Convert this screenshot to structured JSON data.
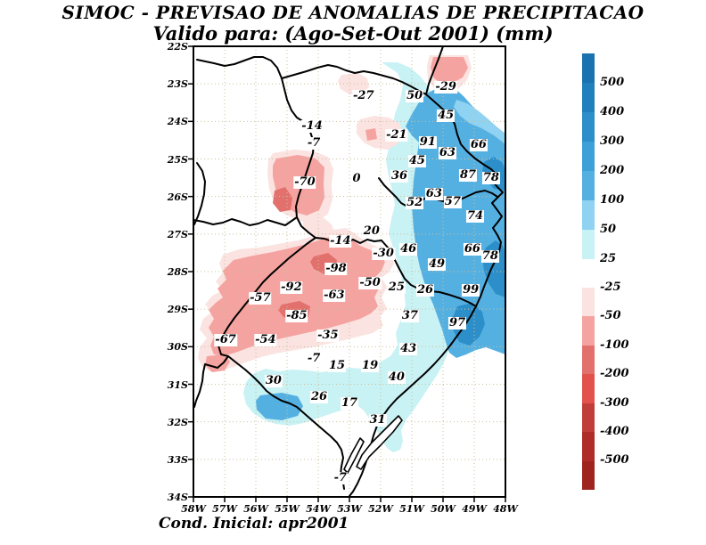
{
  "header": {
    "title": "SIMOC - PREVISAO DE ANOMALIAS DE PRECIPITACAO",
    "subtitle": "Valido para: (Ago-Set-Out 2001) (mm)"
  },
  "footer": {
    "note": "Cond. Inicial: apr2001"
  },
  "chart_data": {
    "type": "heatmap",
    "title": "SIMOC - PREVISAO DE ANOMALIAS DE PRECIPITACAO",
    "subtitle": "Valido para: (Ago-Set-Out 2001) (mm)",
    "footer_note": "Cond. Inicial: apr2001",
    "units": "mm",
    "grid_on": true,
    "x_ticks": [
      "58W",
      "57W",
      "56W",
      "55W",
      "54W",
      "53W",
      "52W",
      "51W",
      "50W",
      "49W",
      "48W"
    ],
    "y_ticks": [
      "22S",
      "23S",
      "24S",
      "25S",
      "26S",
      "27S",
      "28S",
      "29S",
      "30S",
      "31S",
      "32S",
      "33S",
      "34S"
    ],
    "colorbar_positive": {
      "labels": [
        "500",
        "400",
        "300",
        "200",
        "100",
        "50",
        "25"
      ],
      "colors": [
        "#1a72af",
        "#217fbc",
        "#2d8fc9",
        "#3fa0d8",
        "#55b0e2",
        "#8fd2f2",
        "#c9f2f4"
      ]
    },
    "colorbar_negative": {
      "labels": [
        "-25",
        "-50",
        "-100",
        "-200",
        "-300",
        "-400",
        "-500"
      ],
      "colors": [
        "#fbe3e1",
        "#f5a3a0",
        "#e2716e",
        "#e3514d",
        "#c13d39",
        "#b02c28",
        "#9f231f"
      ]
    },
    "palette": {
      "grid": "#c9c09a",
      "map_colors": {
        "cyan": "#c9f2f4",
        "light_blue": "#8fd2f2",
        "blue": "#55b0e2",
        "dark_blue": "#2d8fc9",
        "light_pink": "#fbe3e1",
        "salmon": "#f5a3a0",
        "red": "#e2716e"
      }
    },
    "stations": [
      {
        "value": "-27",
        "lon_w": 52.55,
        "lat_s": 23.33
      },
      {
        "value": "50",
        "lon_w": 50.91,
        "lat_s": 23.33
      },
      {
        "value": "-29",
        "lon_w": 49.91,
        "lat_s": 23.09
      },
      {
        "value": "45",
        "lon_w": 49.91,
        "lat_s": 23.85
      },
      {
        "value": "-14",
        "lon_w": 54.2,
        "lat_s": 24.13
      },
      {
        "value": "-7",
        "lon_w": 54.14,
        "lat_s": 24.58
      },
      {
        "value": "-21",
        "lon_w": 51.49,
        "lat_s": 24.37
      },
      {
        "value": "91",
        "lon_w": 50.49,
        "lat_s": 24.56
      },
      {
        "value": "66",
        "lon_w": 48.86,
        "lat_s": 24.63
      },
      {
        "value": "63",
        "lon_w": 49.86,
        "lat_s": 24.84
      },
      {
        "value": "45",
        "lon_w": 50.83,
        "lat_s": 25.06
      },
      {
        "value": "-70",
        "lon_w": 54.43,
        "lat_s": 25.63
      },
      {
        "value": "0",
        "lon_w": 52.77,
        "lat_s": 25.53
      },
      {
        "value": "36",
        "lon_w": 51.4,
        "lat_s": 25.46
      },
      {
        "value": "87",
        "lon_w": 49.2,
        "lat_s": 25.44
      },
      {
        "value": "78",
        "lon_w": 48.46,
        "lat_s": 25.51
      },
      {
        "value": "63",
        "lon_w": 50.29,
        "lat_s": 25.94
      },
      {
        "value": "57",
        "lon_w": 49.69,
        "lat_s": 26.15
      },
      {
        "value": "52",
        "lon_w": 50.91,
        "lat_s": 26.17
      },
      {
        "value": "74",
        "lon_w": 48.97,
        "lat_s": 26.53
      },
      {
        "value": "20",
        "lon_w": 52.29,
        "lat_s": 26.93
      },
      {
        "value": "-14",
        "lon_w": 53.29,
        "lat_s": 27.19
      },
      {
        "value": "-30",
        "lon_w": 51.91,
        "lat_s": 27.52
      },
      {
        "value": "46",
        "lon_w": 51.11,
        "lat_s": 27.4
      },
      {
        "value": "66",
        "lon_w": 49.06,
        "lat_s": 27.4
      },
      {
        "value": "78",
        "lon_w": 48.49,
        "lat_s": 27.59
      },
      {
        "value": "-98",
        "lon_w": 53.43,
        "lat_s": 27.93
      },
      {
        "value": "49",
        "lon_w": 50.2,
        "lat_s": 27.81
      },
      {
        "value": "-92",
        "lon_w": 54.86,
        "lat_s": 28.42
      },
      {
        "value": "-50",
        "lon_w": 52.34,
        "lat_s": 28.31
      },
      {
        "value": "25",
        "lon_w": 51.49,
        "lat_s": 28.42
      },
      {
        "value": "26",
        "lon_w": 50.57,
        "lat_s": 28.5
      },
      {
        "value": "-63",
        "lon_w": 53.49,
        "lat_s": 28.64
      },
      {
        "value": "-57",
        "lon_w": 55.86,
        "lat_s": 28.71
      },
      {
        "value": "99",
        "lon_w": 49.11,
        "lat_s": 28.5
      },
      {
        "value": "-85",
        "lon_w": 54.69,
        "lat_s": 29.18
      },
      {
        "value": "37",
        "lon_w": 51.06,
        "lat_s": 29.18
      },
      {
        "value": "-67",
        "lon_w": 56.97,
        "lat_s": 29.82
      },
      {
        "value": "-54",
        "lon_w": 55.69,
        "lat_s": 29.82
      },
      {
        "value": "-35",
        "lon_w": 53.69,
        "lat_s": 29.7
      },
      {
        "value": "97",
        "lon_w": 49.54,
        "lat_s": 29.37
      },
      {
        "value": "-7",
        "lon_w": 54.14,
        "lat_s": 30.32
      },
      {
        "value": "15",
        "lon_w": 53.4,
        "lat_s": 30.51
      },
      {
        "value": "19",
        "lon_w": 52.34,
        "lat_s": 30.51
      },
      {
        "value": "43",
        "lon_w": 51.11,
        "lat_s": 30.06
      },
      {
        "value": "30",
        "lon_w": 55.43,
        "lat_s": 30.91
      },
      {
        "value": "40",
        "lon_w": 51.49,
        "lat_s": 30.82
      },
      {
        "value": "26",
        "lon_w": 53.97,
        "lat_s": 31.34
      },
      {
        "value": "17",
        "lon_w": 53.0,
        "lat_s": 31.51
      },
      {
        "value": "31",
        "lon_w": 52.1,
        "lat_s": 31.95
      },
      {
        "value": "-7",
        "lon_w": 53.29,
        "lat_s": 33.5
      }
    ]
  }
}
